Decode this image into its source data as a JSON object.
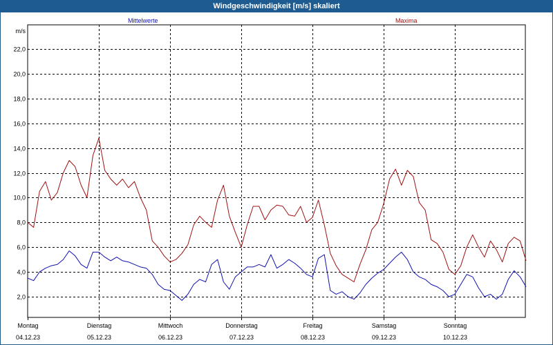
{
  "title": "Windgeschwindigkeit [m/s] skaliert",
  "colors": {
    "header": "#1d5b91",
    "mittelwerte": "#1010b0",
    "maxima": "#a01010"
  },
  "chart_data": {
    "type": "line",
    "title": "Windgeschwindigkeit [m/s] skaliert",
    "ylabel": "m/s",
    "xlabel": "",
    "ylim": [
      0,
      24
    ],
    "yticks": [
      2.0,
      4.0,
      6.0,
      8.0,
      10.0,
      12.0,
      14.0,
      16.0,
      18.0,
      20.0,
      22.0
    ],
    "ytick_labels": [
      "2,0",
      "4,0",
      "6,0",
      "8,0",
      "10,0",
      "12,0",
      "14,0",
      "16,0",
      "18,0",
      "20,0",
      "22,0"
    ],
    "days": [
      {
        "name": "Montag",
        "date": "04.12.23"
      },
      {
        "name": "Dienstag",
        "date": "05.12.23"
      },
      {
        "name": "Mittwoch",
        "date": "06.12.23"
      },
      {
        "name": "Donnerstag",
        "date": "07.12.23"
      },
      {
        "name": "Freitag",
        "date": "08.12.23"
      },
      {
        "name": "Samstag",
        "date": "09.12.23"
      },
      {
        "name": "Sonntag",
        "date": "10.12.23"
      }
    ],
    "x_unit": "Stunden ab Montag 04.12.23 00:00",
    "xlim": [
      0,
      168
    ],
    "grid": true,
    "legend_placement": "top",
    "series": [
      {
        "name": "Mittelwerte",
        "color": "#1010b0",
        "x": [
          0,
          2,
          4,
          6,
          8,
          10,
          12,
          14,
          16,
          18,
          20,
          22,
          24,
          26,
          28,
          30,
          32,
          34,
          36,
          38,
          40,
          42,
          44,
          46,
          48,
          50,
          52,
          54,
          56,
          58,
          60,
          62,
          64,
          66,
          68,
          70,
          72,
          74,
          76,
          78,
          80,
          82,
          84,
          86,
          88,
          90,
          92,
          94,
          96,
          98,
          100,
          102,
          104,
          106,
          108,
          110,
          112,
          114,
          116,
          118,
          120,
          122,
          124,
          126,
          128,
          130,
          132,
          134,
          136,
          138,
          140,
          142,
          144,
          146,
          148,
          150,
          152,
          154,
          156,
          158,
          160,
          162,
          164,
          166,
          168
        ],
        "values": [
          3.5,
          3.3,
          4.0,
          4.3,
          4.5,
          4.6,
          5.0,
          5.7,
          5.3,
          4.6,
          4.3,
          5.6,
          5.6,
          5.2,
          4.9,
          5.2,
          4.9,
          4.8,
          4.6,
          4.4,
          4.3,
          3.8,
          3.0,
          2.6,
          2.5,
          2.1,
          1.7,
          2.2,
          3.0,
          3.4,
          3.2,
          4.6,
          5.0,
          3.2,
          2.6,
          3.6,
          4.0,
          4.4,
          4.4,
          4.6,
          4.4,
          5.4,
          4.3,
          4.6,
          5.0,
          4.7,
          4.3,
          3.8,
          3.6,
          5.1,
          5.4,
          2.5,
          2.2,
          2.4,
          2.0,
          1.8,
          2.3,
          3.0,
          3.5,
          3.9,
          4.2,
          4.7,
          5.2,
          5.6,
          5.0,
          4.0,
          3.6,
          3.4,
          3.0,
          2.8,
          2.5,
          2.0,
          2.2,
          3.0,
          3.8,
          3.6,
          2.7,
          2.0,
          2.2,
          1.8,
          2.2,
          3.4,
          4.1,
          3.6,
          2.8
        ]
      },
      {
        "name": "Maxima",
        "color": "#a01010",
        "x": [
          0,
          2,
          4,
          6,
          8,
          10,
          12,
          14,
          16,
          18,
          20,
          22,
          24,
          26,
          28,
          30,
          32,
          34,
          36,
          38,
          40,
          42,
          44,
          46,
          48,
          50,
          52,
          54,
          56,
          58,
          60,
          62,
          64,
          66,
          68,
          70,
          72,
          74,
          76,
          78,
          80,
          82,
          84,
          86,
          88,
          90,
          92,
          94,
          96,
          98,
          100,
          102,
          104,
          106,
          108,
          110,
          112,
          114,
          116,
          118,
          120,
          122,
          124,
          126,
          128,
          130,
          132,
          134,
          136,
          138,
          140,
          142,
          144,
          146,
          148,
          150,
          152,
          154,
          156,
          158,
          160,
          162,
          164,
          166,
          168
        ],
        "values": [
          8.0,
          7.6,
          10.5,
          11.3,
          9.8,
          10.4,
          12.0,
          13.0,
          12.5,
          11.0,
          10.0,
          13.4,
          14.8,
          12.2,
          11.5,
          11.0,
          11.5,
          10.8,
          11.3,
          10.0,
          9.0,
          6.5,
          6.0,
          5.3,
          4.8,
          5.0,
          5.5,
          6.2,
          7.8,
          8.5,
          8.0,
          7.6,
          9.8,
          11.0,
          8.5,
          7.2,
          6.0,
          7.8,
          9.3,
          9.3,
          8.2,
          9.0,
          9.4,
          9.3,
          8.6,
          8.5,
          9.3,
          8.0,
          8.4,
          9.8,
          7.8,
          5.5,
          4.5,
          3.8,
          3.5,
          3.2,
          4.6,
          5.8,
          7.4,
          8.0,
          9.5,
          11.5,
          12.3,
          11.0,
          12.2,
          11.7,
          9.6,
          9.0,
          6.6,
          6.3,
          5.6,
          4.2,
          3.8,
          4.5,
          6.0,
          7.0,
          6.0,
          5.2,
          6.5,
          5.8,
          4.8,
          6.3,
          6.8,
          6.5,
          4.9
        ]
      }
    ]
  }
}
